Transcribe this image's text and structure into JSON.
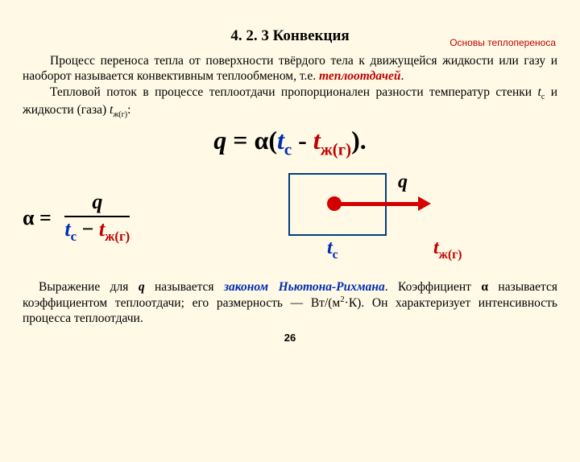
{
  "header": {
    "right": "Основы теплопереноса"
  },
  "title": "4. 2. 3 Конвекция",
  "p1_a": "Процесс переноса тепла от поверхности твёрдого тела к движущейся жидкости или газу и наоборот называется конвективным теплообменом, т.е. ",
  "p1_b": "теплоотдачей",
  "p1_c": ".",
  "p2_a": "Тепловой поток в процессе теплоотдачи пропорционален разности температур стенки ",
  "p2_tc": "t",
  "p2_tc_sub": "с",
  "p2_mid": " и жидкости (газа) ",
  "p2_tzh": "t",
  "p2_tzh_sub": "ж(г)",
  "p2_end": ":",
  "eq": {
    "q": "q",
    "eq": " = ",
    "alpha": "α",
    "open": "(",
    "tc": "t",
    "tc_sub": "с",
    "minus": " - ",
    "tzh": "t",
    "tzh_sub": "ж(г)",
    "close": ")",
    "dot": "."
  },
  "frac": {
    "alpha": "α",
    "eq": " =",
    "num": "q",
    "den_tc": "t",
    "den_tc_sub": "с",
    "den_minus": " − ",
    "den_tzh": "t",
    "den_tzh_sub": "ж(г)"
  },
  "diag": {
    "q": "q",
    "tc": "t",
    "tc_sub": "с",
    "tzh": "t",
    "tzh_sub": "ж(г)"
  },
  "bot": {
    "a": "Выражение для ",
    "q": "q",
    "b": " называется ",
    "law": "законом Ньютона-Рихмана",
    "c": ". Коэффициент ",
    "alpha": "α",
    "d": " называется коэффициентом теплоотдачи; его размерность — Вт/(м",
    "sq": "2",
    "e": "·К). Он характеризует интенсивность процесса теплоотдачи."
  },
  "pagenum": "26"
}
